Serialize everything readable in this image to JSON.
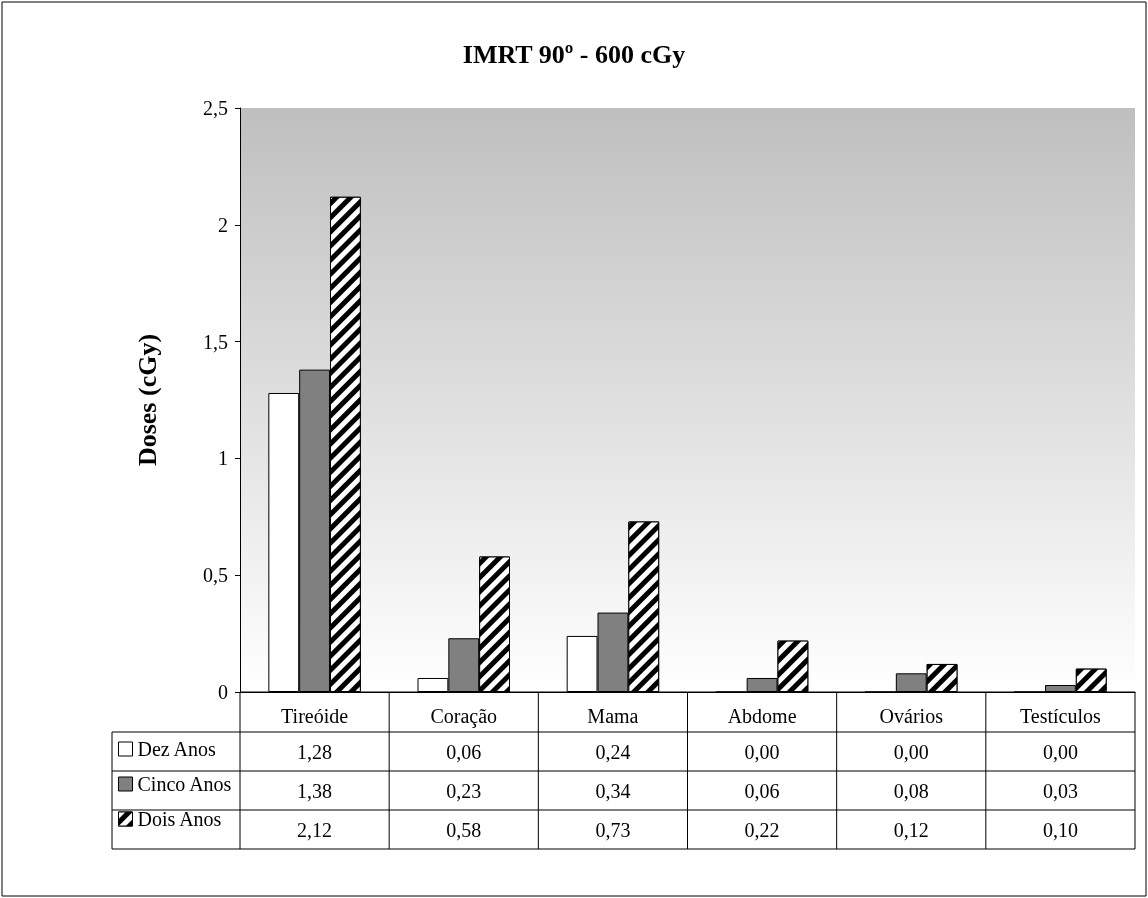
{
  "chart_data": {
    "type": "bar",
    "title": "IMRT 90º - 600 cGy",
    "ylabel": "Doses (cGy)",
    "categories": [
      "Tireóide",
      "Coração",
      "Mama",
      "Abdome",
      "Ovários",
      "Testículos"
    ],
    "series": [
      {
        "name": "Dez Anos",
        "color": "#ffffff",
        "values": [
          1.28,
          0.06,
          0.24,
          0,
          0,
          0
        ],
        "value_labels": [
          "1,28",
          "0,06",
          "0,24",
          "0,00",
          "0,00",
          "0,00"
        ]
      },
      {
        "name": "Cinco Anos",
        "color": "#808080",
        "values": [
          1.38,
          0.23,
          0.34,
          0.06,
          0.08,
          0.03
        ],
        "value_labels": [
          "1,38",
          "0,23",
          "0,34",
          "0,06",
          "0,08",
          "0,03"
        ]
      },
      {
        "name": "Dois Anos",
        "color": "#000000",
        "values": [
          2.12,
          0.58,
          0.73,
          0.22,
          0.12,
          0.1
        ],
        "value_labels": [
          "2,12",
          "0,58",
          "0,73",
          "0,22",
          "0,12",
          "0,10"
        ]
      }
    ],
    "ylim": [
      0,
      2.5
    ],
    "yticks": [
      0,
      {
        "value": 0.5,
        "label": "0,5"
      },
      1,
      {
        "value": 1.5,
        "label": "1,5"
      },
      2,
      {
        "value": 2.5,
        "label": "2,5"
      }
    ],
    "grid": false,
    "legend": "bottom left"
  }
}
